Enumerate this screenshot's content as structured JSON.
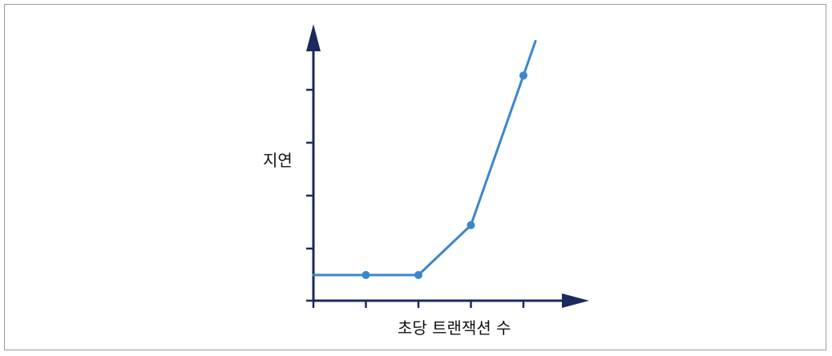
{
  "chart_data": {
    "type": "line",
    "title": "",
    "xlabel": "초당 트랜잭션 수",
    "ylabel": "지연",
    "x": [
      1,
      2,
      3,
      4
    ],
    "series": [
      {
        "values": [
          1,
          1,
          2,
          5
        ]
      }
    ],
    "xlim": [
      0,
      4.2
    ],
    "ylim": [
      0.5,
      6
    ],
    "x_tick_count": 5,
    "y_tick_count": 5,
    "line_extends_beyond_last_point": true,
    "grid": false,
    "colors": {
      "axis": "#1b2a5c",
      "line": "#3a86cf",
      "point": "#3a86cf"
    }
  }
}
